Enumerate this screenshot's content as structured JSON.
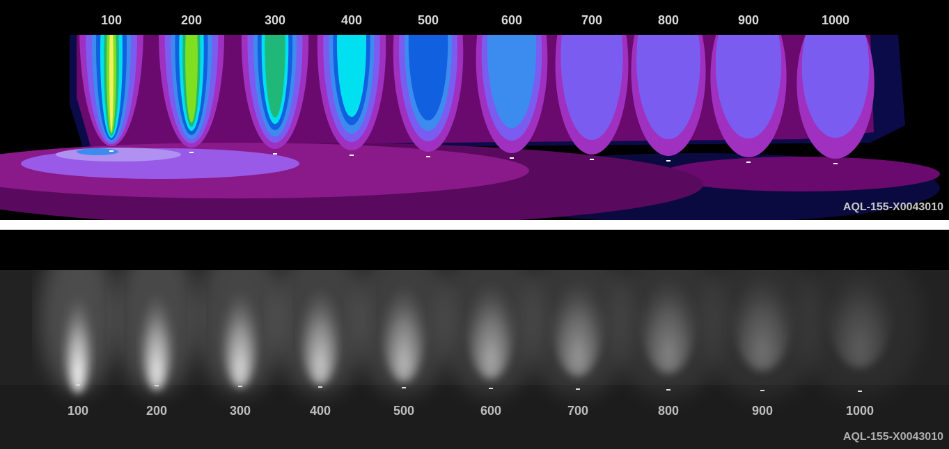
{
  "top_panel": {
    "labels": [
      "100",
      "200",
      "300",
      "400",
      "500",
      "600",
      "700",
      "800",
      "900",
      "1000"
    ],
    "code": "AQL-155-X0043010"
  },
  "bottom_panel": {
    "labels": [
      "100",
      "200",
      "300",
      "400",
      "500",
      "600",
      "700",
      "800",
      "900",
      "1000"
    ],
    "code": "AQL-155-X0043010"
  }
}
